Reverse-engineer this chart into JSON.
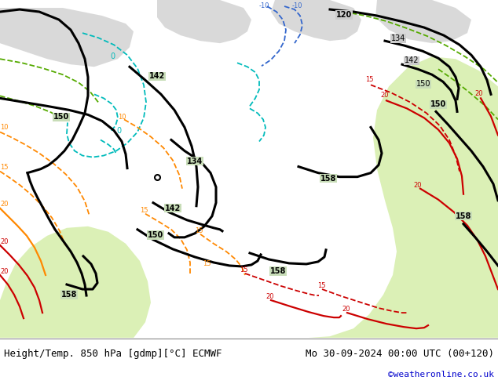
{
  "title_left": "Height/Temp. 850 hPa [gdmp][°C] ECMWF",
  "title_right": "Mo 30-09-2024 00:00 UTC (00+120)",
  "credit": "©weatheronline.co.uk",
  "background_color": "#ffffff",
  "map_bg_color": "#c8ddb8",
  "bottom_bar_color": "#e8e8e8",
  "figsize": [
    6.34,
    4.9
  ],
  "dpi": 100,
  "black_lw": 2.2,
  "temp_lw": 1.3,
  "cyan_color": "#00bbbb",
  "blue_color": "#3366cc",
  "green_color": "#55aa00",
  "orange_color": "#ff8800",
  "red_color": "#cc0000",
  "gray_color": "#999999"
}
